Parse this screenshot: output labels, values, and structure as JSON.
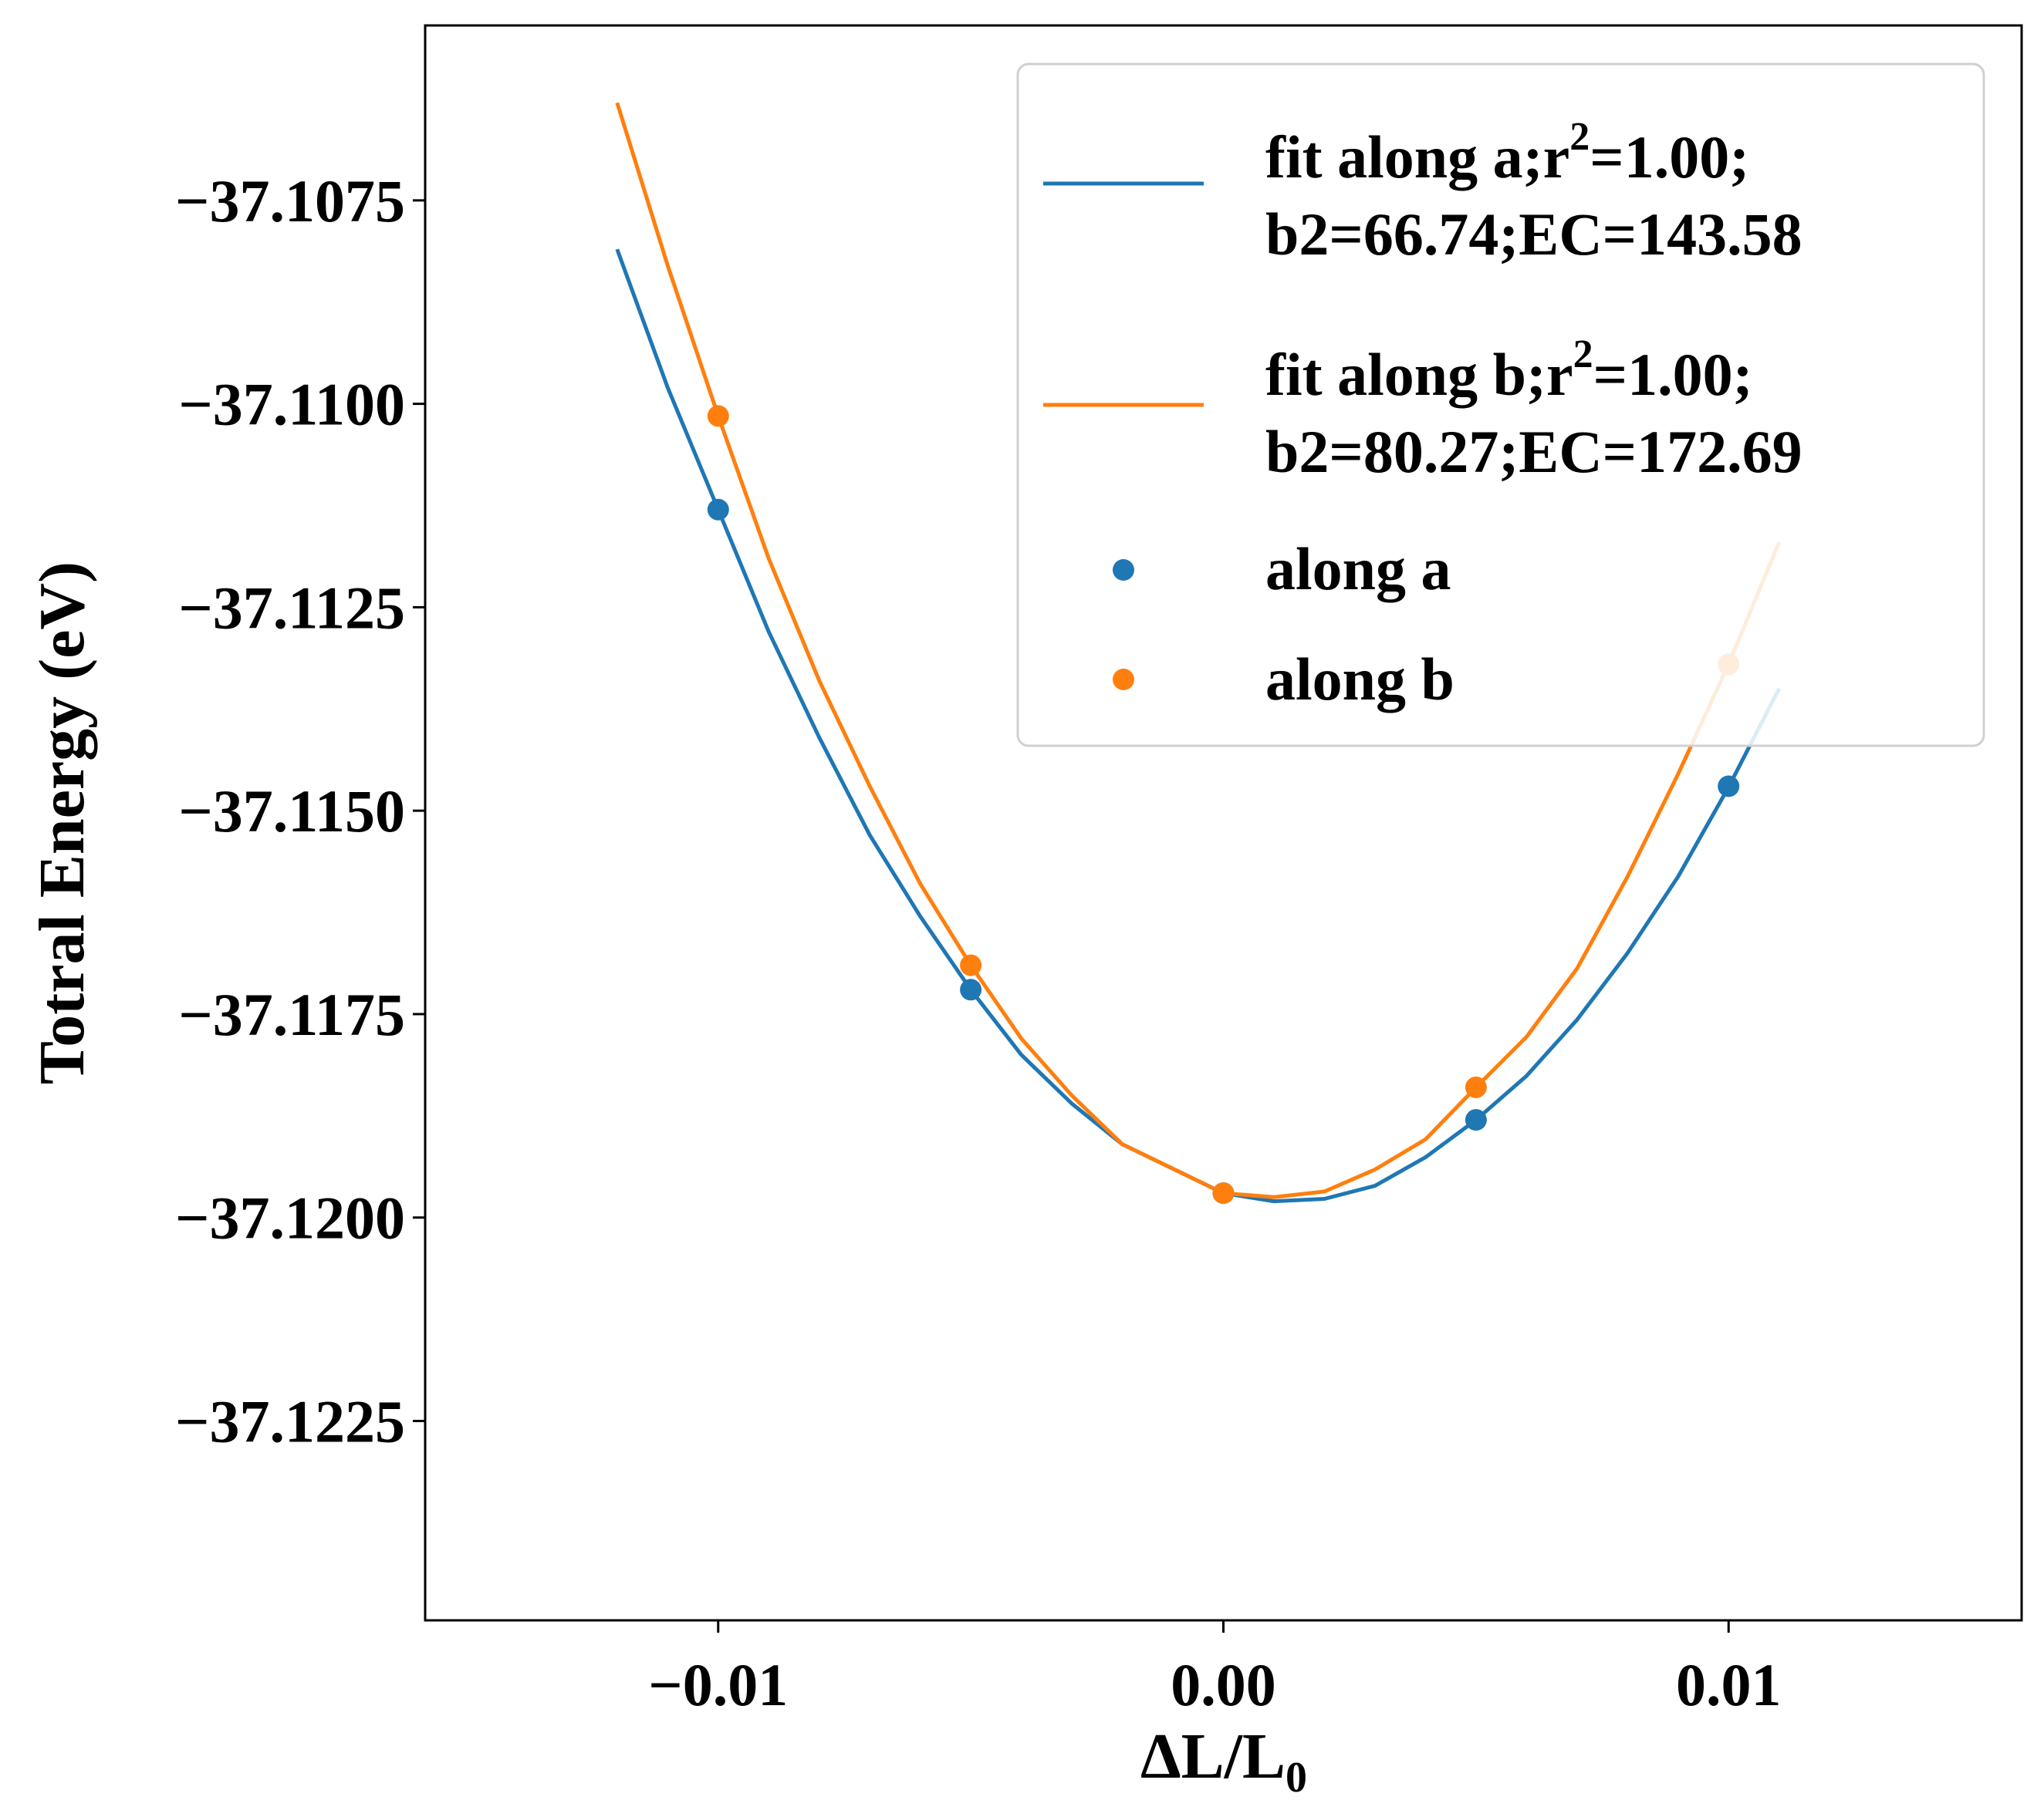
{
  "chart_data": {
    "type": "line",
    "title": "",
    "xlabel": "ΔL/L",
    "xlabel_subscript": "0",
    "ylabel": "Totral Energy (eV)",
    "xlim": [
      -0.0158,
      0.0158
    ],
    "ylim": [
      -37.12495,
      -37.10535
    ],
    "x_ticks": [
      -0.01,
      0.0,
      0.01
    ],
    "x_tick_labels": [
      "−0.01",
      "0.00",
      "0.01"
    ],
    "y_ticks": [
      -37.1075,
      -37.11,
      -37.1125,
      -37.115,
      -37.1175,
      -37.12,
      -37.1225
    ],
    "y_tick_labels": [
      "−37.1075",
      "−37.1100",
      "−37.1125",
      "−37.1150",
      "−37.1175",
      "−37.1200",
      "−37.1225"
    ],
    "grid": false,
    "legend_placement": "top-right",
    "colors": {
      "a": "#1f77b4",
      "b": "#ff7f0e"
    },
    "series": [
      {
        "name": "fit along a;r2=1.00; b2=66.74;EC=143.58",
        "legend_line1_pre": "fit along a;r",
        "legend_line1_sup": "2",
        "legend_line1_post": "=1.00;",
        "legend_line2": "b2=66.74;EC=143.58",
        "kind": "fit-line",
        "color": "#1f77b4",
        "x": [
          -0.012,
          -0.011,
          -0.01,
          -0.009,
          -0.008,
          -0.007,
          -0.006,
          -0.005,
          -0.004,
          -0.003,
          -0.002,
          -0.001,
          0.0,
          0.001,
          0.002,
          0.003,
          0.004,
          0.005,
          0.006,
          0.007,
          0.008,
          0.009,
          0.01,
          0.011
        ],
        "y": [
          -37.1081,
          -37.1098,
          -37.1113,
          -37.1128,
          -37.1141,
          -37.1153,
          -37.1163,
          -37.1172,
          -37.118,
          -37.1186,
          -37.1191,
          -37.1194,
          -37.1197,
          -37.1198,
          -37.11977,
          -37.11961,
          -37.11926,
          -37.1188,
          -37.11826,
          -37.11757,
          -37.11675,
          -37.11581,
          -37.11471,
          -37.1135
        ]
      },
      {
        "name": "fit along b;r2=1.00; b2=80.27;EC=172.69",
        "legend_line1_pre": "fit along b;r",
        "legend_line1_sup": "2",
        "legend_line1_post": "=1.00;",
        "legend_line2": "b2=80.27;EC=172.69",
        "kind": "fit-line",
        "color": "#ff7f0e",
        "x": [
          -0.012,
          -0.011,
          -0.01,
          -0.009,
          -0.008,
          -0.007,
          -0.006,
          -0.005,
          -0.004,
          -0.003,
          -0.002,
          -0.001,
          0.0,
          0.001,
          0.002,
          0.003,
          0.004,
          0.005,
          0.006,
          0.007,
          0.008,
          0.009,
          0.01,
          0.011
        ],
        "y": [
          -37.1063,
          -37.1083,
          -37.11015,
          -37.1119,
          -37.1134,
          -37.1147,
          -37.1159,
          -37.1169,
          -37.1178,
          -37.1185,
          -37.1191,
          -37.1194,
          -37.1197,
          -37.11975,
          -37.11968,
          -37.11941,
          -37.11904,
          -37.1184,
          -37.11778,
          -37.11694,
          -37.11581,
          -37.11455,
          -37.1132,
          -37.1117
        ]
      },
      {
        "name": "along a",
        "kind": "scatter",
        "color": "#1f77b4",
        "x": [
          -0.01,
          -0.005,
          0.0,
          0.005,
          0.01
        ],
        "y": [
          -37.1113,
          -37.1172,
          -37.1197,
          -37.1188,
          -37.1147
        ]
      },
      {
        "name": "along b",
        "kind": "scatter",
        "color": "#ff7f0e",
        "x": [
          -0.01,
          -0.005,
          0.0,
          0.005,
          0.01
        ],
        "y": [
          -37.11015,
          -37.1169,
          -37.1197,
          -37.1184,
          -37.1132
        ]
      }
    ]
  }
}
